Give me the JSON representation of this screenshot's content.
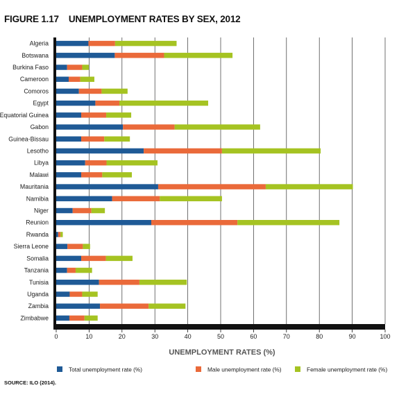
{
  "figure": {
    "number": "FIGURE 1.17",
    "title": "UNEMPLOYMENT RATES BY SEX, 2012",
    "source": "SOURCE: ILO (2014)."
  },
  "chart_data": {
    "type": "bar",
    "orientation": "horizontal",
    "stacked": true,
    "categories": [
      "Algeria",
      "Botswana",
      "Burkina Faso",
      "Cameroon",
      "Comoros",
      "Egypt",
      "Equatorial Guinea",
      "Gabon",
      "Guinea-Bissau",
      "Lesotho",
      "Libya",
      "Malawi",
      "Mauritania",
      "Namibia",
      "Niger",
      "Reunion",
      "Rwanda",
      "Sierra Leone",
      "Somalia",
      "Tanzania",
      "Tunisia",
      "Uganda",
      "Zambia",
      "Zimbabwe"
    ],
    "series": [
      {
        "name": "Total unemployment rate (%)",
        "color": "#1f5a96",
        "values": [
          9.8,
          17.8,
          3.3,
          3.8,
          6.9,
          11.9,
          7.6,
          20.3,
          7.6,
          26.6,
          8.8,
          7.6,
          31.0,
          17.0,
          5.0,
          28.9,
          0.6,
          3.4,
          7.6,
          3.3,
          13.0,
          4.1,
          13.3,
          4.0
        ]
      },
      {
        "name": "Male unemployment rate (%)",
        "color": "#ea6a3a",
        "values": [
          8.1,
          15.0,
          4.6,
          3.5,
          6.9,
          7.3,
          7.6,
          15.7,
          7.0,
          23.8,
          6.5,
          6.4,
          32.7,
          14.5,
          5.7,
          26.2,
          0.7,
          4.7,
          7.5,
          2.6,
          12.3,
          3.8,
          14.8,
          4.6
        ]
      },
      {
        "name": "Female unemployment rate (%)",
        "color": "#a5c322",
        "values": [
          18.7,
          20.8,
          2.0,
          4.3,
          7.9,
          27.0,
          7.6,
          26.0,
          7.8,
          30.0,
          15.5,
          9.0,
          26.5,
          18.9,
          4.1,
          31.0,
          0.7,
          2.2,
          8.1,
          5.0,
          14.4,
          4.7,
          11.2,
          4.0
        ]
      }
    ],
    "xlabel": "UNEMPLOYMENT RATES (%)",
    "ylabel": "",
    "xlim": [
      0,
      100
    ],
    "xticks": [
      0,
      10,
      20,
      30,
      40,
      50,
      60,
      70,
      80,
      90,
      100
    ],
    "grid": true,
    "legend_position": "bottom"
  }
}
